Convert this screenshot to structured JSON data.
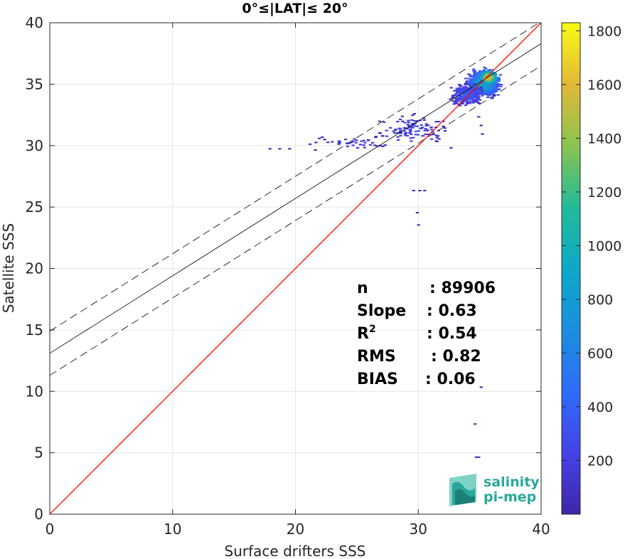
{
  "chart_data": {
    "type": "heatmap",
    "title": "0°≤|LAT|≤ 20°",
    "xlabel": "Surface drifters SSS",
    "ylabel": "Satellite SSS",
    "xlim": [
      0,
      40
    ],
    "ylim": [
      0,
      40
    ],
    "xticks": [
      0,
      10,
      20,
      30,
      40
    ],
    "yticks": [
      0,
      5,
      10,
      15,
      20,
      25,
      30,
      35,
      40
    ],
    "grid": true,
    "colorbar": {
      "min": 0,
      "max": 1830,
      "ticks": [
        200,
        400,
        600,
        800,
        1000,
        1200,
        1400,
        1600,
        1800
      ],
      "colormap": "parula"
    },
    "stats": [
      {
        "label": "n",
        "value": ": 89906"
      },
      {
        "label": "Slope",
        "value": ": 0.63"
      },
      {
        "label": "R²",
        "value": ": 0.54"
      },
      {
        "label": "RMS",
        "value": ": 0.82"
      },
      {
        "label": "BIAS",
        "value": ": 0.06"
      }
    ],
    "lines": {
      "identity": {
        "slope": 1,
        "intercept": 0,
        "color": "#ff0000"
      },
      "regression": {
        "slope": 0.63,
        "intercept": 13.1,
        "color": "#000000"
      },
      "upper_bound": {
        "slope": 0.63,
        "intercept": 14.9,
        "color": "#000000",
        "style": "dashed"
      },
      "lower_bound": {
        "slope": 0.63,
        "intercept": 11.3,
        "color": "#000000",
        "style": "dashed"
      }
    },
    "density_clusters": [
      {
        "x": 35.2,
        "y": 35.1,
        "sx": 1.1,
        "sy": 0.9,
        "n": 900,
        "level": [
          0.05,
          0.5
        ]
      },
      {
        "x": 35.6,
        "y": 35.6,
        "sx": 0.6,
        "sy": 0.5,
        "n": 300,
        "level": [
          0.2,
          0.9
        ]
      },
      {
        "x": 33.8,
        "y": 34.2,
        "sx": 1.2,
        "sy": 0.8,
        "n": 260,
        "level": [
          0.02,
          0.2
        ]
      },
      {
        "x": 29.5,
        "y": 31.4,
        "sx": 2.6,
        "sy": 1.0,
        "n": 110,
        "level": [
          0.02,
          0.12
        ]
      },
      {
        "x": 24.5,
        "y": 30.3,
        "sx": 3.0,
        "sy": 0.4,
        "n": 40,
        "level": [
          0.02,
          0.1
        ]
      }
    ],
    "outliers": [
      [
        17.8,
        29.8
      ],
      [
        18.6,
        29.8
      ],
      [
        19.4,
        29.8
      ],
      [
        21.5,
        29.7
      ],
      [
        27.0,
        30.0
      ],
      [
        30.0,
        26.4
      ],
      [
        29.5,
        26.4
      ],
      [
        30.4,
        26.4
      ],
      [
        29.8,
        24.6
      ],
      [
        29.9,
        23.6
      ],
      [
        35.0,
        34.8
      ],
      [
        34.8,
        32.4
      ],
      [
        35.0,
        31.7
      ],
      [
        35.1,
        31.0
      ],
      [
        35.0,
        10.4
      ],
      [
        34.5,
        7.4
      ],
      [
        34.8,
        4.7
      ],
      [
        34.6,
        4.7
      ]
    ]
  },
  "logo": {
    "line1": "salinity",
    "line2": "pi-mep",
    "color": "#2aa79b"
  }
}
